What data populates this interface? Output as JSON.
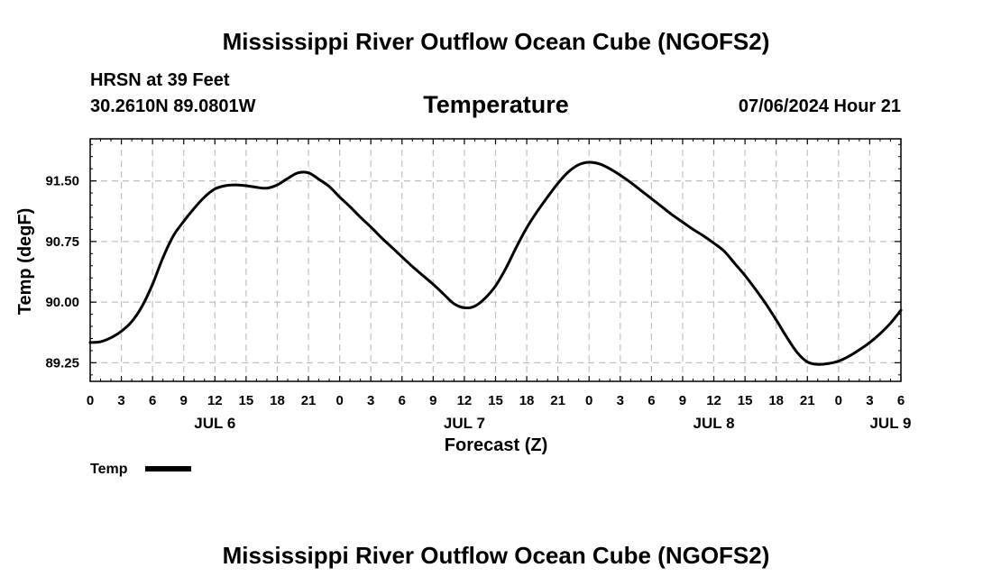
{
  "chart_data": {
    "type": "line",
    "title": "Mississippi River Outflow Ocean Cube (NGOFS2)",
    "footer_title": "Mississippi River Outflow Ocean Cube (NGOFS2)",
    "station": "HRSN at 39 Feet",
    "coordinates": "30.2610N  89.0801W",
    "subtitle": "Temperature",
    "timestamp": "07/06/2024 Hour 21",
    "xlabel": "Forecast (Z)",
    "ylabel": "Temp (degF)",
    "ylim": [
      89.02,
      92.02
    ],
    "y_ticks": [
      89.25,
      90.0,
      90.75,
      91.5
    ],
    "y_tick_labels": [
      "89.25",
      "90.00",
      "90.75",
      "91.50"
    ],
    "x_range_hours": [
      0,
      78
    ],
    "x_tick_labels": [
      "0",
      "3",
      "6",
      "9",
      "12",
      "15",
      "18",
      "21",
      "0",
      "3",
      "6",
      "9",
      "12",
      "15",
      "18",
      "21",
      "0",
      "3",
      "6",
      "9",
      "12",
      "15",
      "18",
      "21",
      "0",
      "3",
      "6"
    ],
    "x_tick_hours": [
      0,
      3,
      6,
      9,
      12,
      15,
      18,
      21,
      24,
      27,
      30,
      33,
      36,
      39,
      42,
      45,
      48,
      51,
      54,
      57,
      60,
      63,
      66,
      69,
      72,
      75,
      78
    ],
    "day_labels": [
      "JUL 6",
      "JUL 7",
      "JUL 8",
      "JUL 9"
    ],
    "day_label_hours": [
      12,
      36,
      60,
      77
    ],
    "grid": true,
    "legend": {
      "label": "Temp",
      "placement": "bottom-left"
    },
    "series": [
      {
        "name": "Temp",
        "color": "#000000",
        "x": [
          0,
          1,
          2,
          3,
          4,
          5,
          6,
          7,
          8,
          9,
          10,
          11,
          12,
          13,
          14,
          15,
          16,
          17,
          18,
          19,
          20,
          21,
          22,
          23,
          24,
          25,
          26,
          27,
          28,
          29,
          30,
          31,
          32,
          33,
          34,
          35,
          36,
          37,
          38,
          39,
          40,
          41,
          42,
          43,
          44,
          45,
          46,
          47,
          48,
          49,
          50,
          51,
          52,
          53,
          54,
          55,
          56,
          57,
          58,
          59,
          60,
          61,
          62,
          63,
          64,
          65,
          66,
          67,
          68,
          69,
          70,
          71,
          72,
          73,
          74,
          75,
          76,
          77,
          78
        ],
        "values": [
          89.5,
          89.51,
          89.56,
          89.64,
          89.76,
          89.95,
          90.22,
          90.55,
          90.82,
          91.0,
          91.16,
          91.3,
          91.4,
          91.44,
          91.45,
          91.44,
          91.42,
          91.41,
          91.45,
          91.53,
          91.6,
          91.6,
          91.52,
          91.43,
          91.3,
          91.18,
          91.05,
          90.93,
          90.8,
          90.68,
          90.56,
          90.44,
          90.33,
          90.22,
          90.1,
          89.98,
          89.93,
          89.95,
          90.05,
          90.2,
          90.42,
          90.68,
          90.92,
          91.12,
          91.3,
          91.47,
          91.61,
          91.7,
          91.73,
          91.71,
          91.65,
          91.57,
          91.48,
          91.38,
          91.28,
          91.18,
          91.08,
          90.99,
          90.9,
          90.82,
          90.73,
          90.63,
          90.48,
          90.33,
          90.16,
          89.98,
          89.78,
          89.57,
          89.38,
          89.26,
          89.23,
          89.24,
          89.27,
          89.33,
          89.41,
          89.5,
          89.61,
          89.74,
          89.9
        ]
      }
    ]
  }
}
